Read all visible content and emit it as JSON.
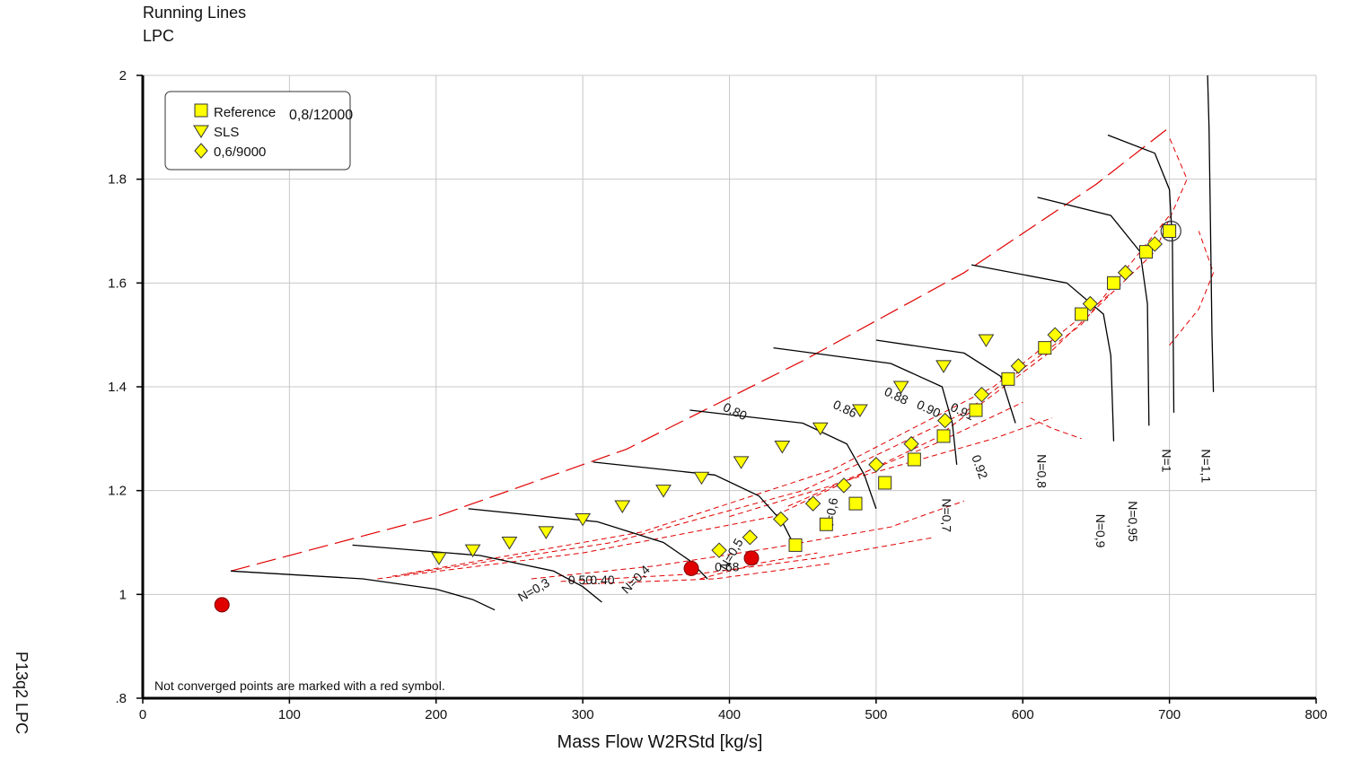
{
  "header": {
    "title": "Running Lines",
    "subtitle": "LPC"
  },
  "side_label": "P13q2  LPC",
  "note": "Not converged points are marked with a red symbol.",
  "colors": {
    "symbol_yellow": "#ffff00",
    "red": "#e00000",
    "speed_line": "#000000",
    "grid": "#c8c8c8"
  },
  "chart_data": {
    "type": "scatter",
    "xlabel": "Mass Flow W2RStd [kg/s]",
    "ylabel": "",
    "xlim": [
      0,
      800
    ],
    "ylim": [
      0.8,
      2.0
    ],
    "x_ticks": [
      "0",
      "100",
      "200",
      "300",
      "400",
      "500",
      "600",
      "700",
      "800"
    ],
    "y_ticks": [
      ".8",
      "1",
      "1.2",
      "1.4",
      "1.6",
      "1.8",
      "2"
    ],
    "grid": true,
    "legend_placement": "top-left",
    "legend_extra": "0,8/12000",
    "series": [
      {
        "name": "Reference",
        "marker": "square",
        "x": [
          445,
          466,
          486,
          506,
          526,
          546,
          568,
          590,
          615,
          640,
          662,
          684,
          700
        ],
        "y": [
          1.095,
          1.135,
          1.175,
          1.215,
          1.26,
          1.305,
          1.355,
          1.415,
          1.475,
          1.54,
          1.6,
          1.66,
          1.7
        ]
      },
      {
        "name": "SLS",
        "marker": "triangle",
        "x": [
          202,
          225,
          250,
          275,
          300,
          327,
          355,
          381,
          408,
          436,
          462,
          489,
          517,
          546,
          575
        ],
        "y": [
          1.07,
          1.085,
          1.1,
          1.12,
          1.145,
          1.17,
          1.2,
          1.225,
          1.255,
          1.285,
          1.32,
          1.355,
          1.4,
          1.44,
          1.49
        ]
      },
      {
        "name": "0,6/9000",
        "marker": "diamond",
        "x": [
          393,
          414,
          435,
          457,
          478,
          500,
          524,
          547,
          572,
          597,
          622,
          646,
          670,
          690
        ],
        "y": [
          1.085,
          1.11,
          1.145,
          1.175,
          1.21,
          1.25,
          1.29,
          1.335,
          1.385,
          1.44,
          1.5,
          1.56,
          1.62,
          1.675
        ]
      },
      {
        "name": "",
        "marker": "circle-red",
        "x": [
          54,
          374,
          415
        ],
        "y": [
          0.98,
          1.05,
          1.07
        ]
      }
    ],
    "speed_lines": [
      {
        "label": "N=0,3",
        "x": [
          60,
          150,
          200,
          225,
          240
        ],
        "y": [
          1.045,
          1.03,
          1.01,
          0.99,
          0.97
        ]
      },
      {
        "label": "N=0,4",
        "x": [
          143,
          230,
          280,
          300,
          313
        ],
        "y": [
          1.095,
          1.075,
          1.045,
          1.015,
          0.985
        ]
      },
      {
        "label": "N=0,5",
        "x": [
          222,
          310,
          355,
          373,
          385
        ],
        "y": [
          1.165,
          1.14,
          1.1,
          1.065,
          1.03
        ]
      },
      {
        "label": "N=0,6",
        "x": [
          307,
          390,
          420,
          436,
          445
        ],
        "y": [
          1.255,
          1.23,
          1.19,
          1.14,
          1.09
        ]
      },
      {
        "label": "N=0,7",
        "x": [
          373,
          450,
          480,
          492,
          500
        ],
        "y": [
          1.355,
          1.33,
          1.29,
          1.23,
          1.165
        ]
      },
      {
        "label": "N=0,8",
        "x": [
          430,
          510,
          545,
          552,
          555
        ],
        "y": [
          1.475,
          1.445,
          1.4,
          1.33,
          1.25
        ]
      },
      {
        "label": "N=0,8_hi",
        "x": [
          500,
          560,
          585,
          595
        ],
        "y": [
          1.49,
          1.465,
          1.42,
          1.33
        ]
      },
      {
        "label": "N=0,9",
        "x": [
          565,
          630,
          655,
          660,
          662
        ],
        "y": [
          1.635,
          1.6,
          1.54,
          1.46,
          1.295
        ]
      },
      {
        "label": "N=0,95",
        "x": [
          610,
          660,
          680,
          685,
          686
        ],
        "y": [
          1.765,
          1.73,
          1.66,
          1.56,
          1.325
        ]
      },
      {
        "label": "N=1",
        "x": [
          658,
          690,
          700,
          702,
          703
        ],
        "y": [
          1.885,
          1.85,
          1.78,
          1.68,
          1.35
        ]
      },
      {
        "label": "N=1,1",
        "x": [
          726,
          727,
          728,
          729,
          730
        ],
        "y": [
          2.0,
          1.9,
          1.7,
          1.5,
          1.39
        ]
      }
    ],
    "speed_labels": [
      {
        "text": "N=0,3",
        "x": 258,
        "y": 0.985,
        "rot": -30
      },
      {
        "text": "N=0,4",
        "x": 330,
        "y": 1.0,
        "rot": -45
      },
      {
        "text": "N=0,5",
        "x": 398,
        "y": 1.045,
        "rot": -60
      },
      {
        "text": "N=0,6",
        "x": 470,
        "y": 1.12,
        "rot": -80
      },
      {
        "text": "N=0,7",
        "x": 545,
        "y": 1.185,
        "rot": 90
      },
      {
        "text": "N=0,8",
        "x": 610,
        "y": 1.27,
        "rot": 90
      },
      {
        "text": "N=0,9",
        "x": 650,
        "y": 1.155,
        "rot": 90
      },
      {
        "text": "N=0,95",
        "x": 672,
        "y": 1.18,
        "rot": 90
      },
      {
        "text": "N=1",
        "x": 695,
        "y": 1.28,
        "rot": 90
      },
      {
        "text": "N=1,1",
        "x": 722,
        "y": 1.28,
        "rot": 90
      }
    ],
    "efficiency_labels": [
      {
        "text": "0.50",
        "x": 290,
        "y": 1.02,
        "rot": 0
      },
      {
        "text": "0.40",
        "x": 305,
        "y": 1.02,
        "rot": 0
      },
      {
        "text": "0.68",
        "x": 390,
        "y": 1.045,
        "rot": 0
      },
      {
        "text": "0.80",
        "x": 395,
        "y": 1.355,
        "rot": 25
      },
      {
        "text": "0.86",
        "x": 470,
        "y": 1.36,
        "rot": 25
      },
      {
        "text": "0.88",
        "x": 505,
        "y": 1.385,
        "rot": 25
      },
      {
        "text": "0.90",
        "x": 527,
        "y": 1.36,
        "rot": 25
      },
      {
        "text": "0.91",
        "x": 550,
        "y": 1.355,
        "rot": 25
      },
      {
        "text": "0.92",
        "x": 565,
        "y": 1.265,
        "rot": 70
      }
    ]
  }
}
